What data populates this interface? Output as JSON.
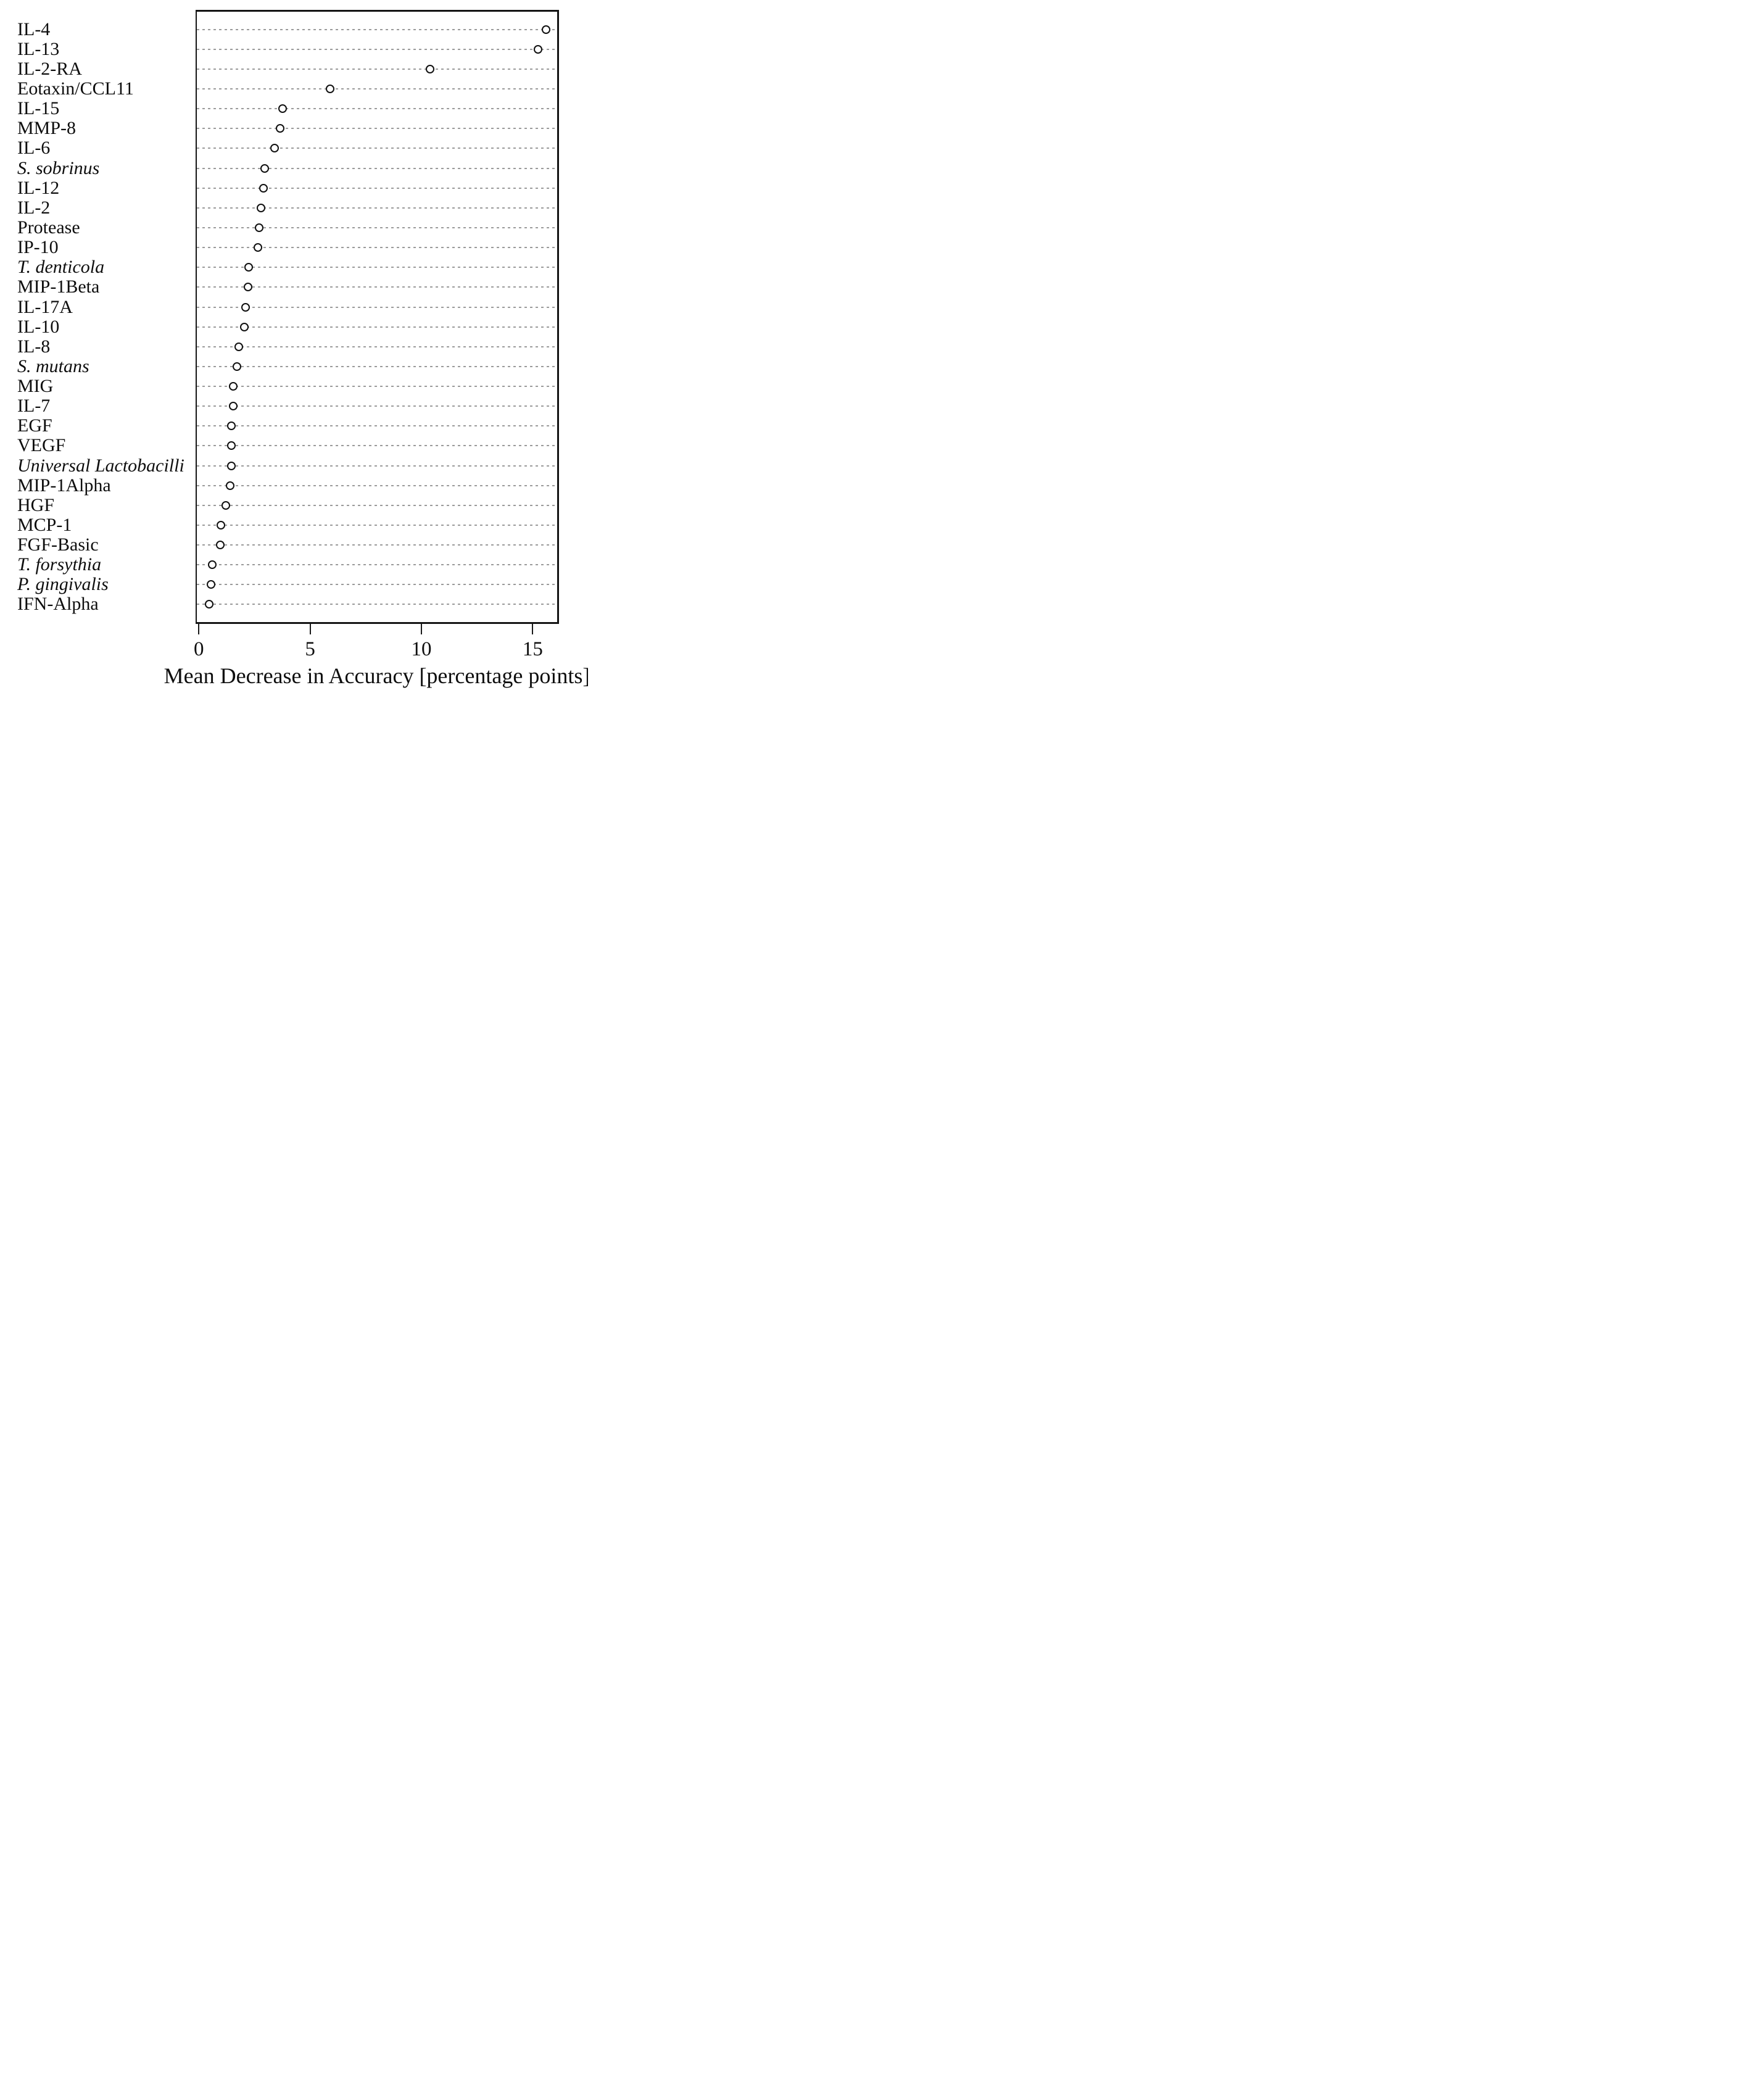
{
  "chart_data": {
    "type": "scatter",
    "variant": "dot-plot",
    "title": "",
    "xlabel": "Mean Decrease in Accuracy [percentage points]",
    "ylabel": "",
    "xlim": [
      -0.2,
      16.2
    ],
    "x_ticks": [
      0,
      5,
      10,
      15
    ],
    "grid": "dotted horizontal line per category, full plot width",
    "legend": "none",
    "marker": "open-circle",
    "colors": {
      "marker_stroke": "#101010",
      "marker_fill": "#ffffff",
      "gridline": "#9b9b9b",
      "box_border": "#141414",
      "text": "#0e0e0e"
    },
    "items": [
      {
        "label": "IL-4",
        "italic": false,
        "value": 15.6
      },
      {
        "label": "IL-13",
        "italic": false,
        "value": 15.25
      },
      {
        "label": "IL-2-RA",
        "italic": false,
        "value": 10.4
      },
      {
        "label": "Eotaxin/CCL11",
        "italic": false,
        "value": 5.9
      },
      {
        "label": "IL-15",
        "italic": false,
        "value": 3.75
      },
      {
        "label": "MMP-8",
        "italic": false,
        "value": 3.65
      },
      {
        "label": "IL-6",
        "italic": false,
        "value": 3.4
      },
      {
        "label": "S. sobrinus",
        "italic": true,
        "value": 2.95
      },
      {
        "label": "IL-12",
        "italic": false,
        "value": 2.9
      },
      {
        "label": "IL-2",
        "italic": false,
        "value": 2.8
      },
      {
        "label": "Protease",
        "italic": false,
        "value": 2.7
      },
      {
        "label": "IP-10",
        "italic": false,
        "value": 2.65
      },
      {
        "label": "T. denticola",
        "italic": true,
        "value": 2.25
      },
      {
        "label": "MIP-1Beta",
        "italic": false,
        "value": 2.2
      },
      {
        "label": "IL-17A",
        "italic": false,
        "value": 2.1
      },
      {
        "label": "IL-10",
        "italic": false,
        "value": 2.05
      },
      {
        "label": "IL-8",
        "italic": false,
        "value": 1.8
      },
      {
        "label": "S. mutans",
        "italic": true,
        "value": 1.7
      },
      {
        "label": "MIG",
        "italic": false,
        "value": 1.55
      },
      {
        "label": "IL-7",
        "italic": false,
        "value": 1.55
      },
      {
        "label": "EGF",
        "italic": false,
        "value": 1.45
      },
      {
        "label": "VEGF",
        "italic": false,
        "value": 1.45
      },
      {
        "label": "Universal Lactobacilli",
        "italic": true,
        "value": 1.45
      },
      {
        "label": "MIP-1Alpha",
        "italic": false,
        "value": 1.4
      },
      {
        "label": "HGF",
        "italic": false,
        "value": 1.2
      },
      {
        "label": "MCP-1",
        "italic": false,
        "value": 1.0
      },
      {
        "label": "FGF-Basic",
        "italic": false,
        "value": 0.95
      },
      {
        "label": "T. forsythia",
        "italic": true,
        "value": 0.6
      },
      {
        "label": "P. gingivalis",
        "italic": true,
        "value": 0.55
      },
      {
        "label": "IFN-Alpha",
        "italic": false,
        "value": 0.45
      }
    ]
  }
}
